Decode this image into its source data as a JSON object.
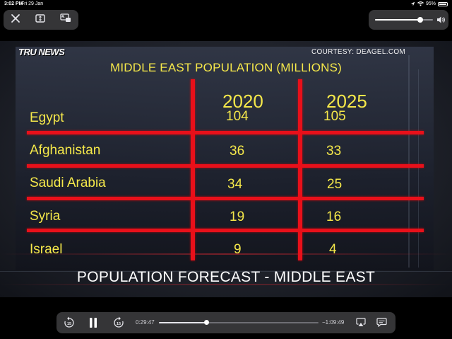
{
  "status_bar": {
    "time": "3:02 PM",
    "date": "Fri 29 Jan",
    "battery": "95%",
    "battery_level": 0.95,
    "wifi_icon": "wifi-icon",
    "location_icon": "location-arrow-icon"
  },
  "top_controls": {
    "close_icon": "close-icon",
    "fullscreen_icon": "fit-screen-icon",
    "pip_icon": "picture-in-picture-icon",
    "volume_level": 0.78,
    "speaker_icon": "speaker-wave-icon"
  },
  "video": {
    "logo": "TRU NEWS",
    "courtesy": "COURTESY:  DEAGEL.COM",
    "table": {
      "title": "MIDDLE EAST POPULATION (MILLIONS)",
      "columns": [
        "2020",
        "2025"
      ],
      "rows": [
        {
          "country": "Egypt",
          "v2020": "104",
          "v2025": "105"
        },
        {
          "country": "Afghanistan",
          "v2020": "36",
          "v2025": "33"
        },
        {
          "country": "Saudi Arabia",
          "v2020": "34",
          "v2025": "25"
        },
        {
          "country": "Syria",
          "v2020": "19",
          "v2025": "16"
        },
        {
          "country": "Israel",
          "v2020": "9",
          "v2025": "4"
        }
      ]
    },
    "lower_third": "POPULATION FORECAST - MIDDLE EAST"
  },
  "playback": {
    "skip_back_icon": "skip-back-15-icon",
    "pause_icon": "pause-icon",
    "skip_forward_icon": "skip-forward-15-icon",
    "elapsed": "0:29:47",
    "remaining": "−1:09:49",
    "progress": 0.3,
    "airplay_icon": "airplay-icon",
    "subtitles_icon": "subtitles-icon"
  },
  "colors": {
    "table_text": "#f5e84a",
    "grid_red": "#e8101a",
    "pill_bg": "#3a3a3c"
  }
}
